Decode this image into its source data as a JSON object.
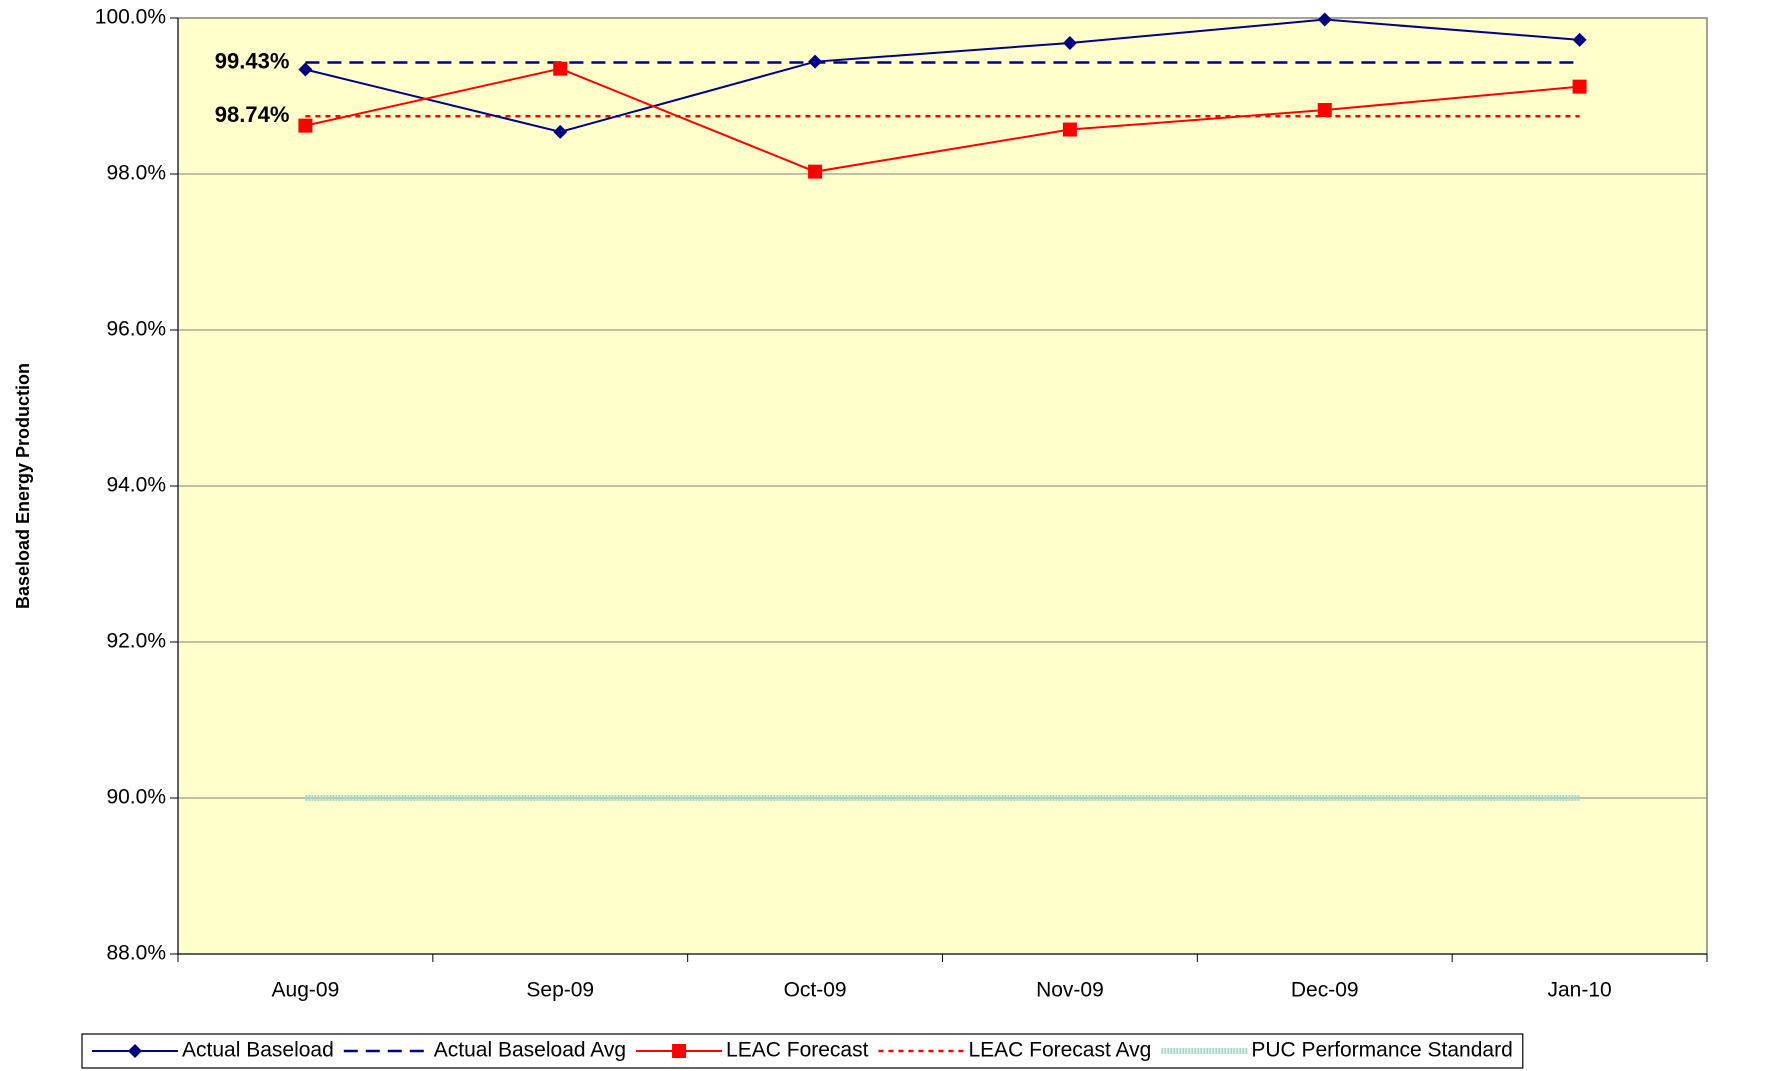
{
  "chart_data": {
    "type": "line",
    "ylabel": "Baseload Energy Production",
    "categories": [
      "Aug-09",
      "Sep-09",
      "Oct-09",
      "Nov-09",
      "Dec-09",
      "Jan-10"
    ],
    "series": [
      {
        "name": "Actual Baseload",
        "color": "#000080",
        "style": "solid",
        "marker": "diamond",
        "values": [
          99.34,
          98.54,
          99.44,
          99.68,
          99.98,
          99.72
        ]
      },
      {
        "name": "Actual Baseload Avg",
        "color": "#000080",
        "style": "dashed",
        "marker": "none",
        "values": [
          99.43,
          99.43,
          99.43,
          99.43,
          99.43,
          99.43
        ],
        "value_labels": [
          "99.43%",
          null,
          null,
          null,
          null,
          null
        ]
      },
      {
        "name": "LEAC Forecast",
        "color": "#ff0000",
        "style": "solid",
        "marker": "square",
        "values": [
          98.62,
          99.35,
          98.03,
          98.57,
          98.82,
          99.12
        ]
      },
      {
        "name": "LEAC Forecast Avg",
        "color": "#ff0000",
        "style": "dotted",
        "marker": "none",
        "values": [
          98.74,
          98.74,
          98.74,
          98.74,
          98.74,
          98.74
        ],
        "value_labels": [
          "98.74%",
          null,
          null,
          null,
          null,
          null
        ]
      },
      {
        "name": "PUC Performance Standard",
        "color": "#a8d8cc",
        "style": "thick",
        "marker": "none",
        "values": [
          90,
          90,
          90,
          90,
          90,
          90
        ]
      }
    ],
    "ylim": [
      88,
      100
    ],
    "yticks": [
      {
        "value": 88,
        "label": "88.0%"
      },
      {
        "value": 90,
        "label": "90.0%"
      },
      {
        "value": 92,
        "label": "92.0%"
      },
      {
        "value": 94,
        "label": "94.0%"
      },
      {
        "value": 96,
        "label": "96.0%"
      },
      {
        "value": 98,
        "label": "98.0%"
      },
      {
        "value": 100,
        "label": "100.0%"
      }
    ],
    "grid": true,
    "plot_background": "#ffffcc",
    "legend": "bottom"
  }
}
